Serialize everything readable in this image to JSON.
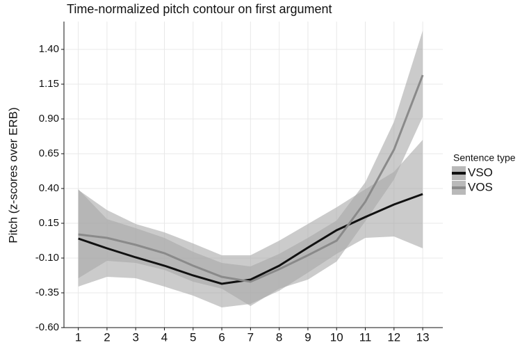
{
  "chart_data": {
    "type": "line",
    "title": "Time-normalized pitch contour on first argument",
    "y_label": "Pitch  (z-scores over ERB)",
    "legend_title": "Sentence type",
    "legend_position": "right",
    "grid": true,
    "x": [
      1,
      2,
      3,
      4,
      5,
      6,
      7,
      8,
      9,
      10,
      11,
      12,
      13
    ],
    "xlim": [
      0.5,
      13.7
    ],
    "xticks": [
      1,
      2,
      3,
      4,
      5,
      6,
      7,
      8,
      9,
      10,
      11,
      12,
      13
    ],
    "ylim": [
      -0.6,
      1.6
    ],
    "yticks": [
      {
        "value": -0.6,
        "label": "-0.60"
      },
      {
        "value": -0.35,
        "label": "-0.35"
      },
      {
        "value": -0.1,
        "label": "-0.10"
      },
      {
        "value": 0.15,
        "label": "0.15"
      },
      {
        "value": 0.4,
        "label": "0.40"
      },
      {
        "value": 0.65,
        "label": "0.65"
      },
      {
        "value": 0.9,
        "label": "0.90"
      },
      {
        "value": 1.15,
        "label": "1.15"
      },
      {
        "value": 1.4,
        "label": "1.40"
      }
    ],
    "series": [
      {
        "name": "VSO",
        "color": "#111111",
        "band_color": "#a8a8a8",
        "values": [
          0.04,
          -0.03,
          -0.095,
          -0.155,
          -0.225,
          -0.285,
          -0.255,
          -0.155,
          -0.025,
          0.1,
          0.195,
          0.285,
          0.36
        ],
        "upper": [
          0.39,
          0.245,
          0.145,
          0.085,
          0.005,
          -0.08,
          -0.08,
          0.025,
          0.145,
          0.265,
          0.395,
          0.52,
          0.75
        ],
        "lower": [
          -0.305,
          -0.235,
          -0.245,
          -0.305,
          -0.37,
          -0.455,
          -0.43,
          -0.335,
          -0.205,
          -0.07,
          0.045,
          0.055,
          -0.03
        ]
      },
      {
        "name": "VOS",
        "color": "#8a8a8a",
        "band_color": "#a8a8a8",
        "values": [
          0.07,
          0.045,
          -0.005,
          -0.065,
          -0.155,
          -0.235,
          -0.27,
          -0.18,
          -0.08,
          0.025,
          0.305,
          0.68,
          1.215
        ],
        "upper": [
          0.395,
          0.18,
          0.115,
          0.045,
          -0.055,
          -0.135,
          -0.16,
          -0.07,
          0.045,
          0.17,
          0.445,
          0.88,
          1.535
        ],
        "lower": [
          -0.245,
          -0.12,
          -0.135,
          -0.185,
          -0.27,
          -0.32,
          -0.445,
          -0.32,
          -0.255,
          -0.125,
          0.165,
          0.465,
          0.915
        ]
      }
    ]
  }
}
